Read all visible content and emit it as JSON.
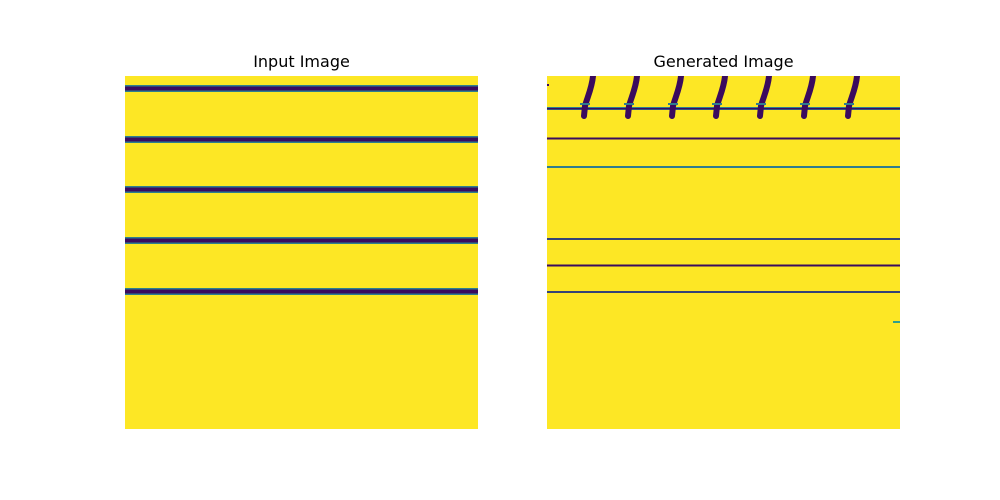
{
  "panels": {
    "left": {
      "title": "Input Image"
    },
    "right": {
      "title": "Generated Image"
    }
  },
  "colors": {
    "background": "#fde725",
    "stripe": "#3a0b5e",
    "stripe_edge": "#2f7e8e"
  }
}
